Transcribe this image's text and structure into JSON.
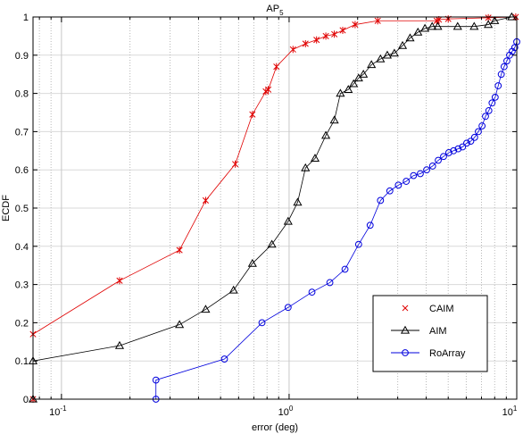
{
  "chart_data": {
    "type": "line",
    "title_main": "AP",
    "title_sub": "5",
    "xlabel": "error (deg)",
    "ylabel": "ECDF",
    "xscale": "log",
    "xlim": [
      0.075,
      10
    ],
    "ylim": [
      0,
      1
    ],
    "grid": true,
    "legend_position": "bottom-right",
    "x_ticks": [
      {
        "value": 0.1,
        "base": "10",
        "exp": "-1"
      },
      {
        "value": 1,
        "base": "10",
        "exp": "0"
      },
      {
        "value": 10,
        "base": "10",
        "exp": "1"
      }
    ],
    "y_ticks": [
      {
        "value": 0,
        "label": "0"
      },
      {
        "value": 0.1,
        "label": "0.1"
      },
      {
        "value": 0.2,
        "label": "0.2"
      },
      {
        "value": 0.3,
        "label": "0.3"
      },
      {
        "value": 0.4,
        "label": "0.4"
      },
      {
        "value": 0.5,
        "label": "0.5"
      },
      {
        "value": 0.6,
        "label": "0.6"
      },
      {
        "value": 0.7,
        "label": "0.7"
      },
      {
        "value": 0.8,
        "label": "0.8"
      },
      {
        "value": 0.9,
        "label": "0.9"
      },
      {
        "value": 1,
        "label": "1"
      }
    ],
    "series": [
      {
        "name": "CAIM",
        "color": "#e00000",
        "marker": "star",
        "x": [
          0.075,
          0.075,
          0.18,
          0.33,
          0.43,
          0.58,
          0.69,
          0.79,
          0.81,
          0.88,
          1.04,
          1.18,
          1.32,
          1.45,
          1.58,
          1.72,
          1.95,
          2.45,
          4.45,
          4.55,
          5.0,
          7.5,
          9.9
        ],
        "y": [
          0.0,
          0.17,
          0.31,
          0.39,
          0.52,
          0.615,
          0.745,
          0.805,
          0.81,
          0.87,
          0.915,
          0.93,
          0.94,
          0.95,
          0.955,
          0.965,
          0.98,
          0.99,
          0.99,
          0.993,
          0.995,
          0.998,
          1.0
        ]
      },
      {
        "name": "AIM",
        "color": "#000000",
        "marker": "triangle",
        "x": [
          0.075,
          0.075,
          0.18,
          0.33,
          0.43,
          0.57,
          0.69,
          0.84,
          0.99,
          1.09,
          1.18,
          1.3,
          1.45,
          1.58,
          1.68,
          1.82,
          1.92,
          2.02,
          2.12,
          2.3,
          2.52,
          2.7,
          2.9,
          3.15,
          3.4,
          3.68,
          3.95,
          4.25,
          4.5,
          5.5,
          6.5,
          7.5,
          8.0,
          9.5
        ],
        "y": [
          0.0,
          0.1,
          0.14,
          0.195,
          0.235,
          0.285,
          0.355,
          0.405,
          0.465,
          0.515,
          0.605,
          0.63,
          0.69,
          0.73,
          0.8,
          0.81,
          0.825,
          0.84,
          0.85,
          0.875,
          0.89,
          0.9,
          0.905,
          0.925,
          0.945,
          0.96,
          0.97,
          0.975,
          0.975,
          0.975,
          0.975,
          0.98,
          0.99,
          1.0
        ]
      },
      {
        "name": "RoArray",
        "color": "#0000dd",
        "marker": "circle",
        "x": [
          0.26,
          0.26,
          0.52,
          0.76,
          0.99,
          1.26,
          1.51,
          1.76,
          2.02,
          2.27,
          2.52,
          2.77,
          3.02,
          3.27,
          3.52,
          3.77,
          4.02,
          4.27,
          4.52,
          4.77,
          5.03,
          5.28,
          5.53,
          5.78,
          6.03,
          6.28,
          6.53,
          6.78,
          7.04,
          7.29,
          7.54,
          7.79,
          8.04,
          8.29,
          8.55,
          8.8,
          9.05,
          9.3,
          9.55,
          9.8,
          10.0
        ],
        "y": [
          0.0,
          0.05,
          0.105,
          0.2,
          0.24,
          0.28,
          0.305,
          0.34,
          0.405,
          0.455,
          0.52,
          0.545,
          0.56,
          0.57,
          0.585,
          0.59,
          0.6,
          0.61,
          0.625,
          0.635,
          0.645,
          0.65,
          0.655,
          0.66,
          0.67,
          0.675,
          0.685,
          0.7,
          0.715,
          0.74,
          0.755,
          0.775,
          0.79,
          0.82,
          0.85,
          0.87,
          0.885,
          0.9,
          0.91,
          0.92,
          0.935
        ]
      }
    ]
  }
}
